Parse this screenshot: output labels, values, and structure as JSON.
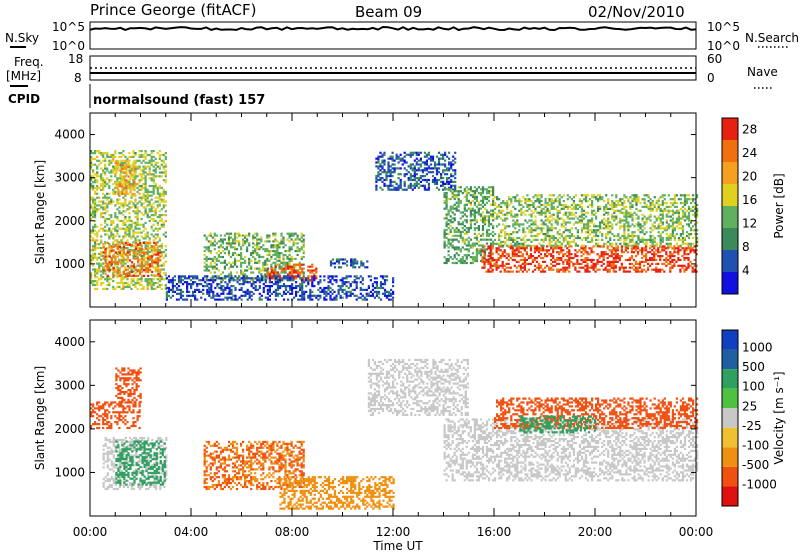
{
  "header": {
    "station": "Prince George (fitACF)",
    "beam": "Beam 09",
    "date": "02/Nov/2010"
  },
  "panels": {
    "nsky": {
      "left_label": "N.Sky",
      "right_label": "N.Search",
      "left_ticks": [
        "10^5",
        "10^0"
      ],
      "right_ticks": [
        "10^5",
        "10^0"
      ]
    },
    "freq": {
      "left_label_1": "Freq.",
      "left_label_2": "[MHz]",
      "right_label": "Nave",
      "left_ticks": [
        "18",
        "8"
      ],
      "right_ticks": [
        "60",
        "0"
      ]
    },
    "cpid": {
      "label": "CPID",
      "text": "normalsound (fast) 157"
    }
  },
  "colors": {
    "power": [
      "#1010e0",
      "#2050b0",
      "#3a8a5a",
      "#60b060",
      "#e0d020",
      "#f5a020",
      "#f07010",
      "#e82010"
    ],
    "velocity": [
      "#e01010",
      "#f05010",
      "#f09010",
      "#f0c030",
      "#c8c8c8",
      "#50c040",
      "#30a060",
      "#2060a0",
      "#1040c0"
    ]
  },
  "chart_data": [
    {
      "type": "heatmap",
      "title": "",
      "xlabel": "",
      "ylabel": "Slant Range [km]",
      "x_ticks": [
        "00:00",
        "04:00",
        "08:00",
        "12:00",
        "16:00",
        "20:00",
        "00:00"
      ],
      "x_range_hours": [
        0,
        24
      ],
      "y_range_km": [
        0,
        4500
      ],
      "y_ticks": [
        "1000",
        "2000",
        "3000",
        "4000"
      ],
      "colorbar": {
        "label": "Power [dB]",
        "ticks": [
          "4",
          "8",
          "12",
          "16",
          "20",
          "24",
          "28"
        ],
        "range": [
          0,
          30
        ]
      },
      "scatter_regions": [
        {
          "t0": 0.0,
          "t1": 3.0,
          "r0": 400,
          "r1": 3600,
          "level": 15
        },
        {
          "t0": 0.5,
          "t1": 2.8,
          "r0": 700,
          "r1": 1500,
          "level": 24
        },
        {
          "t0": 1.0,
          "t1": 1.8,
          "r0": 2600,
          "r1": 3400,
          "level": 20
        },
        {
          "t0": 4.5,
          "t1": 8.5,
          "r0": 600,
          "r1": 1700,
          "level": 13
        },
        {
          "t0": 7.0,
          "t1": 9.0,
          "r0": 600,
          "r1": 1000,
          "level": 26
        },
        {
          "t0": 9.5,
          "t1": 11.0,
          "r0": 900,
          "r1": 1100,
          "level": 6
        },
        {
          "t0": 3.0,
          "t1": 12.0,
          "r0": 150,
          "r1": 700,
          "level": 5
        },
        {
          "t0": 11.3,
          "t1": 14.5,
          "r0": 2700,
          "r1": 3600,
          "level": 6
        },
        {
          "t0": 14.0,
          "t1": 16.0,
          "r0": 1000,
          "r1": 2800,
          "level": 12
        },
        {
          "t0": 15.5,
          "t1": 24.0,
          "r0": 800,
          "r1": 1400,
          "level": 27
        },
        {
          "t0": 16.0,
          "t1": 24.0,
          "r0": 1400,
          "r1": 2600,
          "level": 14
        }
      ]
    },
    {
      "type": "heatmap",
      "title": "",
      "xlabel": "Time UT",
      "ylabel": "Slant Range [km]",
      "x_ticks": [
        "00:00",
        "04:00",
        "08:00",
        "12:00",
        "16:00",
        "20:00",
        "00:00"
      ],
      "x_range_hours": [
        0,
        24
      ],
      "y_range_km": [
        0,
        4500
      ],
      "y_ticks": [
        "1000",
        "2000",
        "3000",
        "4000"
      ],
      "colorbar": {
        "label": "Velocity [m s⁻¹]",
        "ticks": [
          "1000",
          "500",
          "100",
          "25",
          "-25",
          "-100",
          "-500",
          "-1000"
        ]
      },
      "scatter_regions": [
        {
          "t0": 0.0,
          "t1": 2.0,
          "r0": 2000,
          "r1": 2600,
          "level": -150
        },
        {
          "t0": 0.5,
          "t1": 3.0,
          "r0": 600,
          "r1": 1800,
          "level": 0
        },
        {
          "t0": 1.0,
          "t1": 3.0,
          "r0": 700,
          "r1": 1700,
          "level": 150
        },
        {
          "t0": 1.0,
          "t1": 2.0,
          "r0": 2600,
          "r1": 3400,
          "level": -150
        },
        {
          "t0": 4.5,
          "t1": 8.5,
          "r0": 600,
          "r1": 1700,
          "level": -100
        },
        {
          "t0": 7.5,
          "t1": 12.0,
          "r0": 150,
          "r1": 900,
          "level": -60
        },
        {
          "t0": 11.0,
          "t1": 15.0,
          "r0": 2300,
          "r1": 3600,
          "level": 0
        },
        {
          "t0": 14.0,
          "t1": 24.0,
          "r0": 800,
          "r1": 2200,
          "level": 0
        },
        {
          "t0": 16.0,
          "t1": 24.0,
          "r0": 2000,
          "r1": 2700,
          "level": -200
        },
        {
          "t0": 17.0,
          "t1": 20.0,
          "r0": 1900,
          "r1": 2300,
          "level": 150
        }
      ]
    }
  ]
}
